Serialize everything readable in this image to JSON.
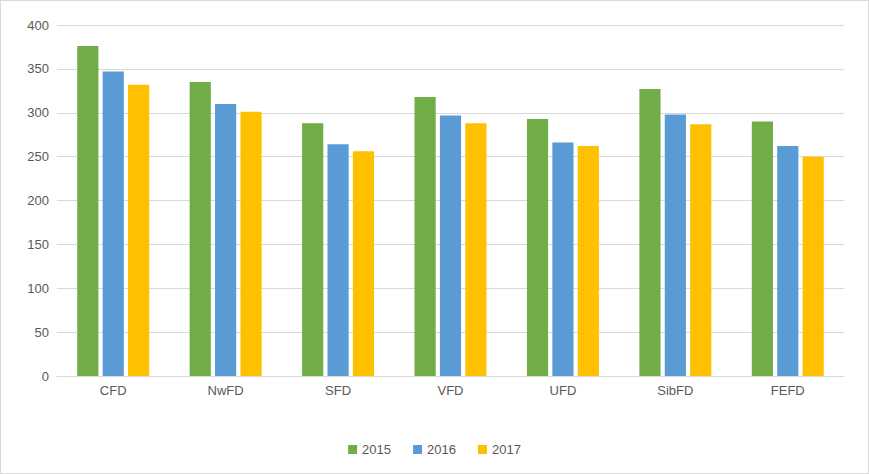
{
  "chart_data": {
    "type": "bar",
    "categories": [
      "CFD",
      "NwFD",
      "SFD",
      "VFD",
      "UFD",
      "SibFD",
      "FEFD"
    ],
    "series": [
      {
        "name": "2015",
        "color": "#70ad47",
        "values": [
          376,
          335,
          288,
          318,
          293,
          327,
          290
        ]
      },
      {
        "name": "2016",
        "color": "#5b9bd5",
        "values": [
          347,
          310,
          264,
          297,
          266,
          298,
          262
        ]
      },
      {
        "name": "2017",
        "color": "#ffc000",
        "values": [
          332,
          301,
          256,
          288,
          262,
          287,
          250
        ]
      }
    ],
    "ylim": [
      0,
      400
    ],
    "yticks": [
      0,
      50,
      100,
      150,
      200,
      250,
      300,
      350,
      400
    ],
    "grid": true,
    "legend": "bottom"
  }
}
